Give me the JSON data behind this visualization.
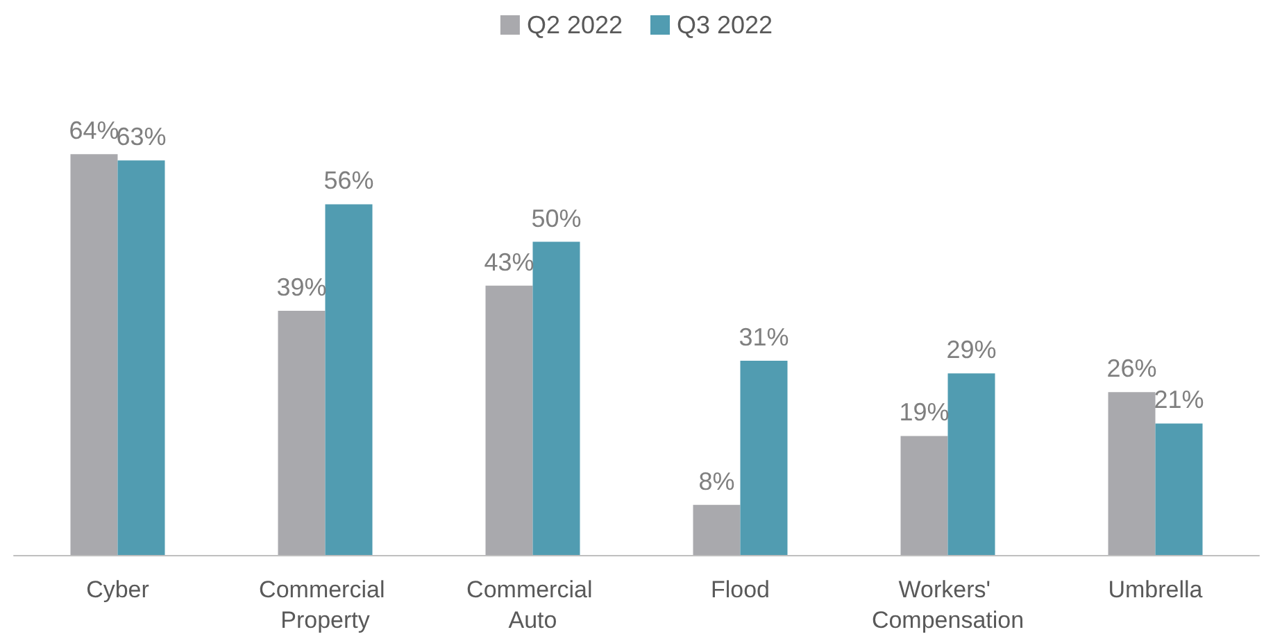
{
  "chart_data": {
    "type": "bar",
    "categories": [
      "Cyber",
      "Commercial Property",
      "Commercial Auto",
      "Flood",
      "Workers' Compensation",
      "Umbrella"
    ],
    "series": [
      {
        "name": "Q2 2022",
        "color": "#a9a9ad",
        "values": [
          64,
          39,
          43,
          8,
          19,
          26
        ],
        "value_labels": [
          "64%",
          "39%",
          "43%",
          "8%",
          "19%",
          "26%"
        ]
      },
      {
        "name": "Q3 2022",
        "color": "#519cb1",
        "values": [
          63,
          56,
          50,
          31,
          29,
          21
        ],
        "value_labels": [
          "63%",
          "56%",
          "50%",
          "31%",
          "29%",
          "21%"
        ]
      }
    ],
    "legend": "top"
  }
}
